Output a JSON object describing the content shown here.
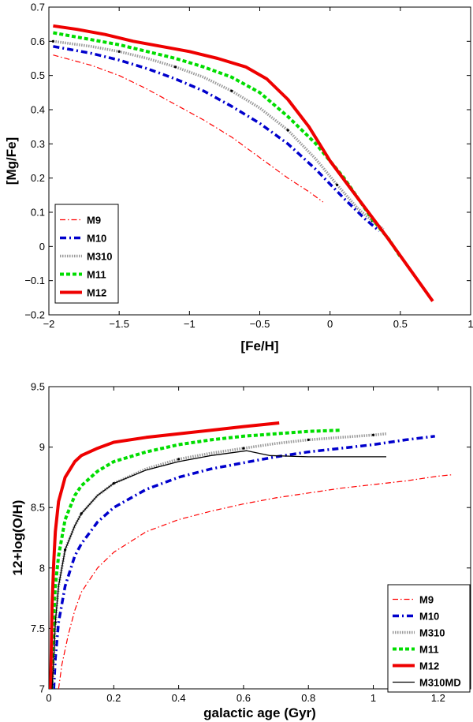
{
  "chart_data": [
    {
      "type": "line",
      "title": "",
      "xlabel": "[Fe/H]",
      "ylabel": "[Mg/Fe]",
      "xlim": [
        -2,
        1
      ],
      "ylim": [
        -0.2,
        0.7
      ],
      "xticks": [
        -2,
        -1.5,
        -1,
        -0.5,
        0,
        0.5,
        1
      ],
      "yticks": [
        -0.2,
        -0.1,
        0,
        0.1,
        0.2,
        0.3,
        0.4,
        0.5,
        0.6,
        0.7
      ],
      "xtick_labels": [
        "−2",
        "−1.5",
        "−1",
        "−0.5",
        "0",
        "0.5",
        "1"
      ],
      "ytick_labels": [
        "−0.2",
        "−0.1",
        "0",
        "0.1",
        "0.2",
        "0.3",
        "0.4",
        "0.5",
        "0.6",
        "0.7"
      ],
      "legend_position": "bottom-left",
      "series": [
        {
          "name": "M9",
          "color": "#ff0000",
          "style": "dashdot-thin",
          "x": [
            -1.97,
            -1.7,
            -1.5,
            -1.3,
            -1.1,
            -0.9,
            -0.7,
            -0.5,
            -0.3,
            -0.15,
            -0.05
          ],
          "y": [
            0.56,
            0.53,
            0.5,
            0.46,
            0.415,
            0.37,
            0.32,
            0.26,
            0.2,
            0.16,
            0.13
          ]
        },
        {
          "name": "M10",
          "color": "#0000cc",
          "style": "dashdot-thick",
          "x": [
            -1.97,
            -1.7,
            -1.5,
            -1.3,
            -1.1,
            -0.9,
            -0.7,
            -0.5,
            -0.3,
            -0.1,
            0.1,
            0.25,
            0.35
          ],
          "y": [
            0.585,
            0.565,
            0.545,
            0.52,
            0.49,
            0.455,
            0.41,
            0.36,
            0.3,
            0.225,
            0.14,
            0.08,
            0.045
          ]
        },
        {
          "name": "M310",
          "color": "#999999",
          "style": "dotted-marker",
          "x": [
            -1.97,
            -1.7,
            -1.5,
            -1.3,
            -1.1,
            -0.9,
            -0.7,
            -0.5,
            -0.3,
            -0.1,
            0.05,
            0.2,
            0.3,
            0.38
          ],
          "y": [
            0.6,
            0.585,
            0.57,
            0.55,
            0.525,
            0.495,
            0.455,
            0.405,
            0.34,
            0.255,
            0.18,
            0.11,
            0.075,
            0.05
          ]
        },
        {
          "name": "M11",
          "color": "#00dd00",
          "style": "dashed-thick",
          "x": [
            -1.97,
            -1.7,
            -1.5,
            -1.3,
            -1.1,
            -0.9,
            -0.7,
            -0.5,
            -0.3,
            -0.1,
            0.1,
            0.3,
            0.42,
            0.5
          ],
          "y": [
            0.625,
            0.605,
            0.59,
            0.57,
            0.55,
            0.525,
            0.495,
            0.45,
            0.38,
            0.3,
            0.2,
            0.08,
            0.02,
            -0.03
          ]
        },
        {
          "name": "M12",
          "color": "#ee0000",
          "style": "solid-thick",
          "x": [
            -1.97,
            -1.8,
            -1.6,
            -1.4,
            -1.2,
            -1.0,
            -0.8,
            -0.6,
            -0.45,
            -0.3,
            -0.15,
            0.0,
            0.2,
            0.4,
            0.6,
            0.73
          ],
          "y": [
            0.645,
            0.635,
            0.62,
            0.6,
            0.585,
            0.57,
            0.55,
            0.525,
            0.49,
            0.43,
            0.35,
            0.25,
            0.14,
            0.03,
            -0.085,
            -0.16
          ]
        }
      ]
    },
    {
      "type": "line",
      "title": "",
      "xlabel": "galactic age (Gyr)",
      "ylabel": "12+log(O/H)",
      "xlim": [
        0,
        1.3
      ],
      "ylim": [
        7,
        9.5
      ],
      "xticks": [
        0,
        0.2,
        0.4,
        0.6,
        0.8,
        1,
        1.2
      ],
      "yticks": [
        7,
        7.5,
        8,
        8.5,
        9,
        9.5
      ],
      "xtick_labels": [
        "0",
        "0.2",
        "0.4",
        "0.6",
        "0.8",
        "1",
        "1.2"
      ],
      "ytick_labels": [
        "7",
        "7.5",
        "8",
        "8.5",
        "9",
        "9.5"
      ],
      "legend_position": "bottom-right",
      "series": [
        {
          "name": "M9",
          "color": "#ff0000",
          "style": "dashdot-thin",
          "x": [
            0.03,
            0.04,
            0.06,
            0.08,
            0.1,
            0.15,
            0.2,
            0.3,
            0.4,
            0.5,
            0.6,
            0.7,
            0.8,
            0.9,
            1.0,
            1.1,
            1.2,
            1.24
          ],
          "y": [
            7.0,
            7.2,
            7.45,
            7.65,
            7.8,
            8.0,
            8.13,
            8.3,
            8.4,
            8.47,
            8.53,
            8.58,
            8.62,
            8.66,
            8.69,
            8.72,
            8.76,
            8.77
          ]
        },
        {
          "name": "M10",
          "color": "#0000cc",
          "style": "dashdot-thick",
          "x": [
            0.015,
            0.02,
            0.03,
            0.05,
            0.08,
            0.1,
            0.15,
            0.2,
            0.3,
            0.4,
            0.5,
            0.6,
            0.7,
            0.8,
            0.9,
            1.0,
            1.1,
            1.19
          ],
          "y": [
            7.0,
            7.25,
            7.55,
            7.85,
            8.1,
            8.2,
            8.38,
            8.5,
            8.65,
            8.75,
            8.82,
            8.87,
            8.92,
            8.96,
            8.99,
            9.02,
            9.06,
            9.09
          ]
        },
        {
          "name": "M310",
          "color": "#999999",
          "style": "dotted-marker",
          "x": [
            0.01,
            0.015,
            0.02,
            0.03,
            0.05,
            0.08,
            0.1,
            0.15,
            0.2,
            0.3,
            0.4,
            0.5,
            0.6,
            0.7,
            0.8,
            0.9,
            1.0,
            1.04
          ],
          "y": [
            7.0,
            7.25,
            7.55,
            7.85,
            8.15,
            8.35,
            8.45,
            8.6,
            8.7,
            8.82,
            8.9,
            8.95,
            8.99,
            9.03,
            9.06,
            9.08,
            9.1,
            9.11
          ]
        },
        {
          "name": "M11",
          "color": "#00dd00",
          "style": "dashed-thick",
          "x": [
            0.008,
            0.01,
            0.015,
            0.02,
            0.03,
            0.05,
            0.08,
            0.1,
            0.15,
            0.2,
            0.3,
            0.4,
            0.5,
            0.6,
            0.7,
            0.8,
            0.9
          ],
          "y": [
            7.0,
            7.3,
            7.6,
            7.85,
            8.1,
            8.4,
            8.6,
            8.68,
            8.8,
            8.88,
            8.96,
            9.02,
            9.06,
            9.09,
            9.11,
            9.13,
            9.14
          ]
        },
        {
          "name": "M12",
          "color": "#ee0000",
          "style": "solid-thick",
          "x": [
            0.005,
            0.008,
            0.01,
            0.015,
            0.02,
            0.03,
            0.05,
            0.08,
            0.1,
            0.15,
            0.2,
            0.3,
            0.4,
            0.5,
            0.6,
            0.71
          ],
          "y": [
            7.0,
            7.4,
            7.7,
            8.05,
            8.3,
            8.55,
            8.75,
            8.88,
            8.93,
            8.99,
            9.04,
            9.08,
            9.11,
            9.14,
            9.17,
            9.2
          ]
        },
        {
          "name": "M310MD",
          "color": "#000000",
          "style": "solid-thin",
          "x": [
            0.01,
            0.015,
            0.02,
            0.03,
            0.05,
            0.08,
            0.1,
            0.15,
            0.2,
            0.3,
            0.4,
            0.5,
            0.61,
            0.68,
            0.8,
            0.9,
            1.04
          ],
          "y": [
            7.0,
            7.25,
            7.55,
            7.85,
            8.15,
            8.35,
            8.45,
            8.6,
            8.7,
            8.81,
            8.88,
            8.93,
            8.97,
            8.93,
            8.92,
            8.92,
            8.92
          ]
        }
      ]
    }
  ]
}
